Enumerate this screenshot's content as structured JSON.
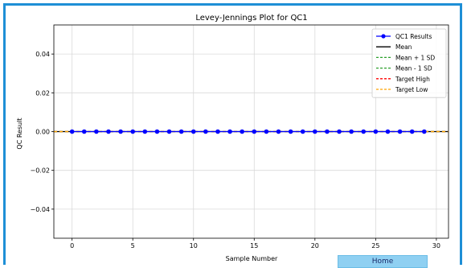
{
  "home_button": {
    "label": "Home"
  },
  "chart_data": {
    "type": "line",
    "title": "Levey-Jennings Plot for QC1",
    "xlabel": "Sample Number",
    "ylabel": "QC Result",
    "xlim": [
      -1.5,
      31.0
    ],
    "ylim": [
      -0.055,
      0.055
    ],
    "x_ticks": [
      0,
      5,
      10,
      15,
      20,
      25,
      30
    ],
    "y_ticks": [
      -0.04,
      -0.02,
      0.0,
      0.02,
      0.04
    ],
    "y_tick_labels": [
      "−0.04",
      "−0.02",
      "0.00",
      "0.02",
      "0.04"
    ],
    "grid": true,
    "legend_position": "top-right",
    "series": [
      {
        "name": "QC1 Results",
        "color": "#0000ff",
        "marker": "circle",
        "x": [
          0,
          1,
          2,
          3,
          4,
          5,
          6,
          7,
          8,
          9,
          10,
          11,
          12,
          13,
          14,
          15,
          16,
          17,
          18,
          19,
          20,
          21,
          22,
          23,
          24,
          25,
          26,
          27,
          28,
          29
        ],
        "values": [
          0,
          0,
          0,
          0,
          0,
          0,
          0,
          0,
          0,
          0,
          0,
          0,
          0,
          0,
          0,
          0,
          0,
          0,
          0,
          0,
          0,
          0,
          0,
          0,
          0,
          0,
          0,
          0,
          0,
          0
        ]
      }
    ],
    "reference_lines": [
      {
        "name": "Mean",
        "value": 0.0,
        "color": "#000000",
        "style": "solid"
      },
      {
        "name": "Mean + 1 SD",
        "value": 0.0,
        "color": "#2ca02c",
        "style": "dashed"
      },
      {
        "name": "Mean - 1 SD",
        "value": 0.0,
        "color": "#2ca02c",
        "style": "dashed"
      },
      {
        "name": "Target High",
        "value": 0.0,
        "color": "#ff0000",
        "style": "dashed"
      },
      {
        "name": "Target Low",
        "value": 0.0,
        "color": "#ffa500",
        "style": "dashed"
      }
    ]
  }
}
